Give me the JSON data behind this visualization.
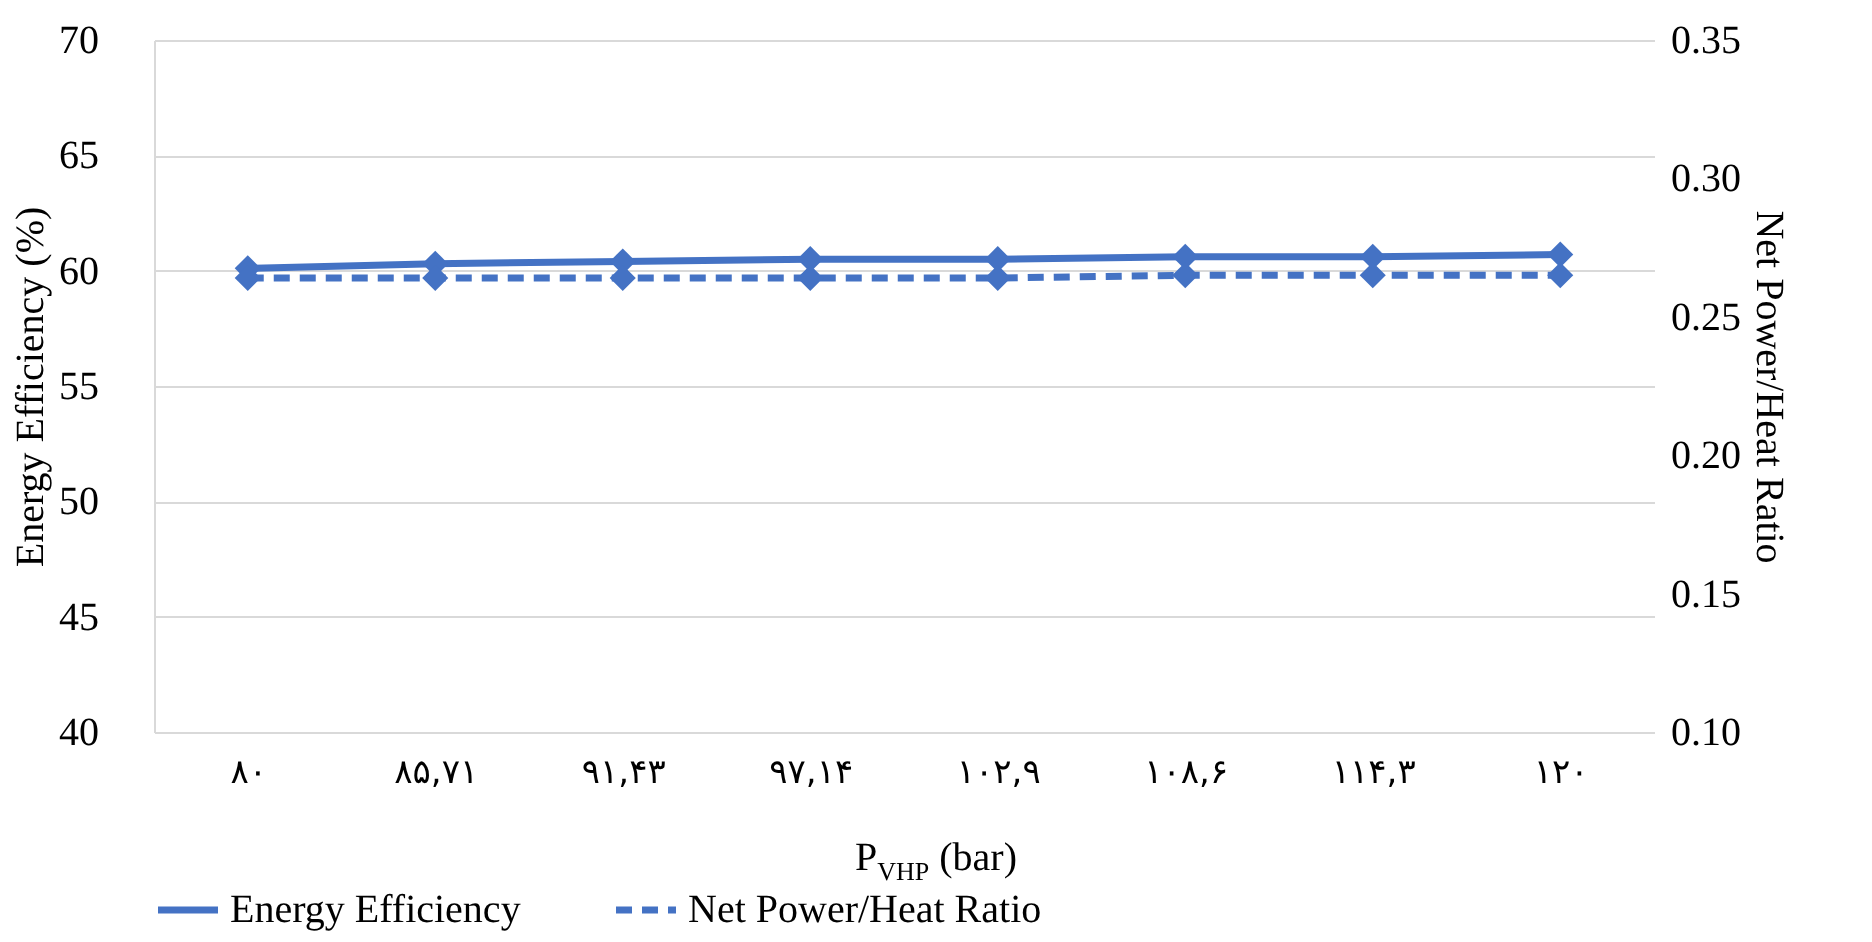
{
  "chart_data": {
    "type": "line",
    "xlabel": "P$_{VHP}$ (bar)",
    "ylabel": "Energy Efficiency (%)",
    "y2label": "Net Power/Heat Ratio",
    "categories": [
      "۸۰",
      "۸۵,۷۱",
      "۹۱,۴۳",
      "۹۷,۱۴",
      "۱۰۲,۹",
      "۱۰۸,۶",
      "۱۱۴,۳",
      "۱۲۰"
    ],
    "series": [
      {
        "name": "Energy Efficiency",
        "color": "#4472c4",
        "line_style": "solid",
        "values": [
          60.1,
          60.3,
          60.4,
          60.5,
          60.5,
          60.6,
          60.6,
          60.7
        ]
      },
      {
        "name": "Net Power/Heat Ratio",
        "color": "#4472c4",
        "line_style": "dashed",
        "axis": "y2",
        "values": [
          0.264,
          0.264,
          0.264,
          0.264,
          0.264,
          0.265,
          0.265,
          0.265
        ]
      }
    ],
    "ylim": [
      40,
      70
    ],
    "yticks": [
      40,
      45,
      50,
      55,
      60,
      65,
      70
    ],
    "y2lim": [
      0.1,
      0.35
    ],
    "y2ticks": [
      {
        "value": 0.1,
        "label": "0.10"
      },
      0.15,
      {
        "value": 0.2,
        "label": "0.20"
      },
      0.25,
      {
        "value": 0.3,
        "label": "0.30"
      },
      0.35
    ],
    "grid": "y",
    "legend": "bottom",
    "marker": "diamond"
  }
}
